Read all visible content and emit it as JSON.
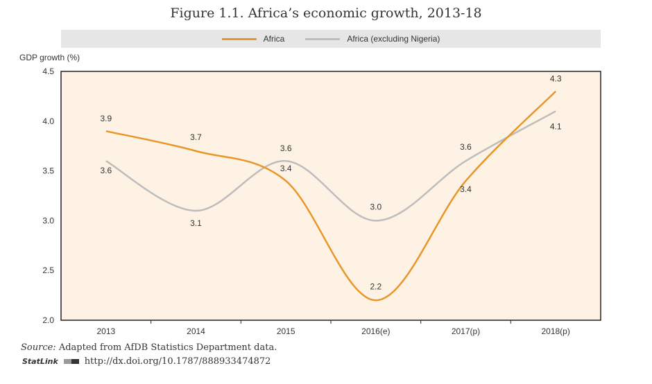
{
  "chart_data": {
    "type": "line",
    "title": "Figure 1.1. Africa’s economic growth, 2013-18",
    "ylabel": "GDP growth (%)",
    "xlabel": "",
    "categories": [
      "2013",
      "2014",
      "2015",
      "2016(e)",
      "2017(p)",
      "2018(p)"
    ],
    "ylim": [
      2.0,
      4.5
    ],
    "yticks": [
      "2.0",
      "2.5",
      "3.0",
      "3.5",
      "4.0",
      "4.5"
    ],
    "legend_position": "top",
    "series": [
      {
        "name": "Africa",
        "values": [
          3.9,
          3.7,
          3.4,
          2.2,
          3.4,
          4.3
        ],
        "labels": [
          "3.9",
          "3.7",
          "3.4",
          "2.2",
          "3.4",
          "4.3"
        ],
        "color": "#e8962a"
      },
      {
        "name": "Africa (excluding Nigeria)",
        "values": [
          3.6,
          3.1,
          3.6,
          3.0,
          3.6,
          4.1
        ],
        "labels": [
          "3.6",
          "3.1",
          "3.6",
          "3.0",
          "3.6",
          "4.1"
        ],
        "color": "#bdbdbd"
      }
    ]
  },
  "source_prefix": "Source:",
  "source_text": " Adapted from AfDB Statistics Department data.",
  "statlink_label": "StatLink",
  "statlink_url": "http://dx.doi.org/10.1787/888933474872"
}
